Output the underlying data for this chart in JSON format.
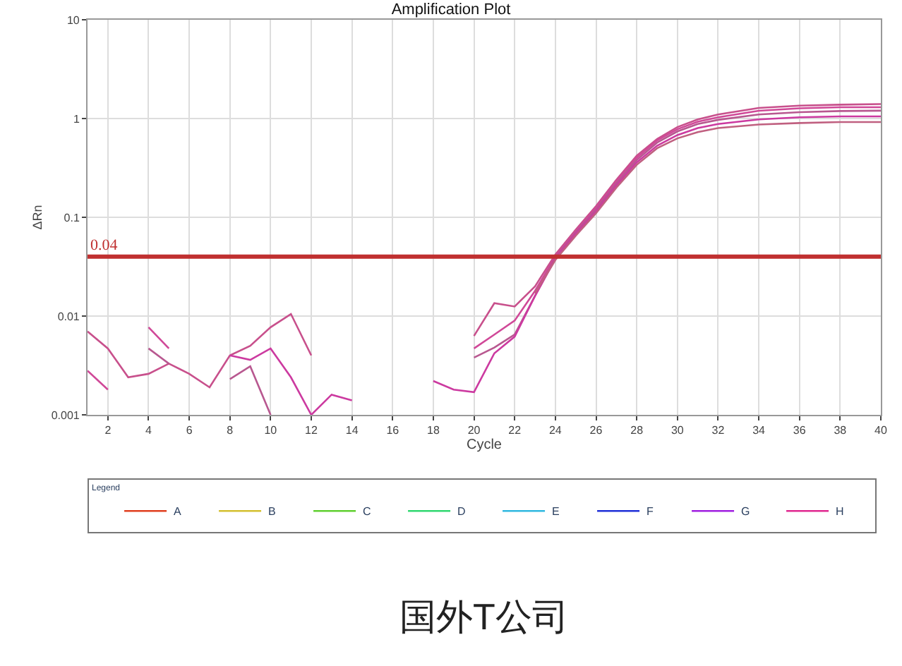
{
  "chart_data": {
    "type": "line",
    "title": "Amplification Plot",
    "xlabel": "Cycle",
    "ylabel": "ΔRn",
    "legend_title": "Legend",
    "log": "y",
    "grid": true,
    "legend": "bottom",
    "marker": "none",
    "line_style": "solid",
    "xlim": [
      1,
      40
    ],
    "xticks": [
      2,
      4,
      6,
      8,
      10,
      12,
      14,
      16,
      18,
      20,
      22,
      24,
      26,
      28,
      30,
      32,
      34,
      36,
      38,
      40
    ],
    "ylim": [
      0.001,
      10
    ],
    "yticks": [
      0.001,
      0.01,
      0.1,
      1,
      10
    ],
    "ref_lines": [
      {
        "axis": "y",
        "value": 0.04,
        "label": "0.04",
        "color": "#c03030"
      }
    ],
    "annotations": [
      "国外T公司"
    ],
    "series": [
      {
        "color": "#c8508c",
        "x": [
          1,
          2,
          3,
          4,
          5,
          6,
          7,
          8,
          9,
          10,
          11,
          12,
          13,
          14,
          15,
          16,
          17,
          18,
          19,
          20,
          21,
          22,
          23,
          24,
          25,
          26,
          27,
          28,
          29,
          30,
          31,
          32,
          34,
          36,
          38,
          40
        ],
        "values": [
          0.007,
          0.0047,
          0.0024,
          0.0026,
          0.0033,
          0.0026,
          0.0019,
          0.004,
          0.005,
          0.0077,
          0.0105,
          0.004,
          null,
          null,
          null,
          null,
          null,
          null,
          null,
          0.0063,
          0.0135,
          0.0125,
          0.02,
          0.042,
          0.075,
          0.13,
          0.24,
          0.42,
          0.62,
          0.82,
          0.98,
          1.1,
          1.28,
          1.35,
          1.38,
          1.4
        ]
      },
      {
        "color": "#d04898",
        "x": [
          1,
          2,
          3,
          4,
          5,
          6,
          7,
          8,
          9,
          10,
          11,
          12,
          13,
          14,
          15,
          16,
          17,
          18,
          19,
          20,
          21,
          22,
          23,
          24,
          25,
          26,
          27,
          28,
          29,
          30,
          31,
          32,
          34,
          36,
          38,
          40
        ],
        "values": [
          0.0028,
          0.0018,
          null,
          0.0077,
          0.0047,
          null,
          null,
          null,
          null,
          null,
          null,
          null,
          null,
          null,
          null,
          null,
          null,
          null,
          null,
          0.0047,
          0.0065,
          0.009,
          0.018,
          0.04,
          0.072,
          0.125,
          0.23,
          0.4,
          0.6,
          0.78,
          0.93,
          1.03,
          1.2,
          1.27,
          1.3,
          1.3
        ]
      },
      {
        "color": "#b85890",
        "x": [
          4,
          5,
          6,
          7,
          8,
          9,
          10,
          11,
          12,
          13,
          14,
          15,
          16,
          17,
          18,
          19,
          20,
          21,
          22,
          23,
          24,
          25,
          26,
          27,
          28,
          29,
          30,
          31,
          32,
          34,
          36,
          38,
          40
        ],
        "values": [
          0.0047,
          0.0033,
          null,
          null,
          0.0023,
          0.0031,
          0.001,
          null,
          null,
          null,
          null,
          null,
          null,
          null,
          null,
          null,
          0.0038,
          0.0048,
          0.0065,
          0.016,
          0.039,
          0.07,
          0.12,
          0.22,
          0.38,
          0.57,
          0.74,
          0.88,
          0.97,
          1.1,
          1.16,
          1.19,
          1.2
        ]
      },
      {
        "color": "#cc3aa0",
        "x": [
          8,
          9,
          10,
          11,
          12,
          13,
          14,
          15,
          16,
          17,
          18,
          19,
          20,
          21,
          22,
          23,
          24,
          25,
          26,
          27,
          28,
          29,
          30,
          31,
          32,
          34,
          36,
          38,
          40
        ],
        "values": [
          0.004,
          0.0036,
          0.0047,
          0.0024,
          0.001,
          0.0016,
          0.0014,
          null,
          null,
          null,
          0.0022,
          0.0018,
          0.0017,
          0.0042,
          0.0062,
          0.016,
          0.038,
          0.068,
          0.115,
          0.21,
          0.36,
          0.53,
          0.68,
          0.8,
          0.88,
          0.98,
          1.03,
          1.05,
          1.05
        ]
      },
      {
        "color": "#c06080",
        "x": [
          23,
          24,
          25,
          26,
          27,
          28,
          29,
          30,
          31,
          32,
          34,
          36,
          38,
          40
        ],
        "values": [
          0.017,
          0.037,
          0.065,
          0.11,
          0.2,
          0.34,
          0.5,
          0.63,
          0.73,
          0.8,
          0.87,
          0.9,
          0.92,
          0.92
        ]
      },
      {
        "name": "A",
        "color": "#e04020"
      },
      {
        "name": "B",
        "color": "#d4c030"
      },
      {
        "name": "C",
        "color": "#60d030"
      },
      {
        "name": "D",
        "color": "#30d870"
      },
      {
        "name": "E",
        "color": "#30b8e0"
      },
      {
        "name": "F",
        "color": "#2030d8"
      },
      {
        "name": "G",
        "color": "#a020e0"
      },
      {
        "name": "H",
        "color": "#e02890"
      }
    ]
  }
}
